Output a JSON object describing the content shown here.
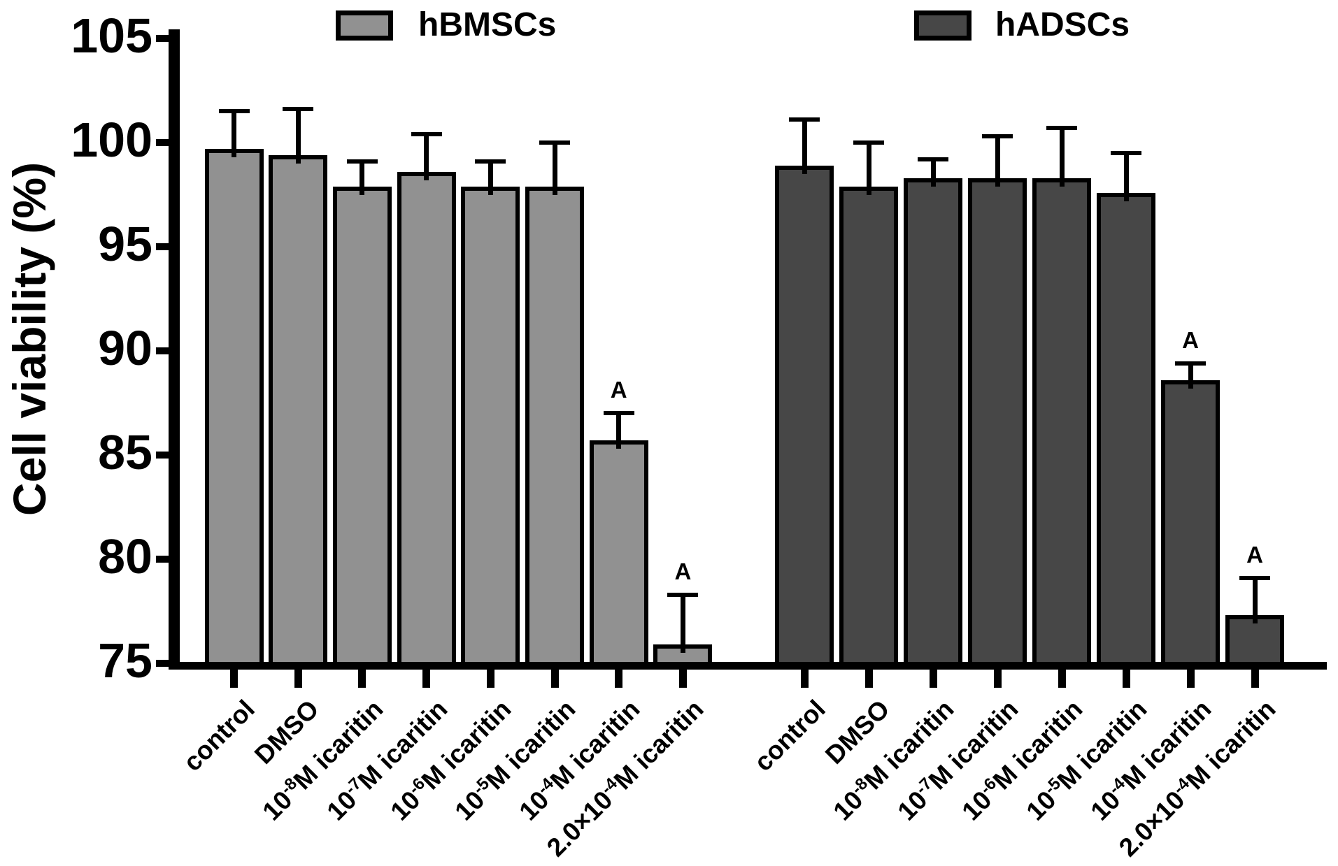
{
  "figure": {
    "background": "#ffffff",
    "axis_color": "#000000",
    "significance_marker": "A"
  },
  "chart_data": {
    "type": "bar",
    "title": "",
    "xlabel": "",
    "ylabel": "Cell viability (%)",
    "ylim": [
      75,
      105
    ],
    "yticks": [
      105,
      100,
      95,
      90,
      85,
      80,
      75
    ],
    "grid": false,
    "legend_position": "top",
    "error_bars": "plus_sd_cap",
    "categories": [
      {
        "pre": "control",
        "sup": "",
        "rest": ""
      },
      {
        "pre": "DMSO",
        "sup": "",
        "rest": ""
      },
      {
        "pre": "10",
        "sup": "-8",
        "rest": "M icaritin"
      },
      {
        "pre": "10",
        "sup": "-7",
        "rest": "M icaritin"
      },
      {
        "pre": "10",
        "sup": "-6",
        "rest": "M icaritin"
      },
      {
        "pre": "10",
        "sup": "-5",
        "rest": "M icaritin"
      },
      {
        "pre": "10",
        "sup": "-4",
        "rest": "M icaritin"
      },
      {
        "pre": "2.0×10",
        "sup": "-4",
        "rest": "M icaritin"
      }
    ],
    "series": [
      {
        "name": "hBMSCs",
        "color": "#919191",
        "values": [
          99.7,
          99.4,
          97.9,
          98.6,
          97.9,
          97.9,
          85.7,
          75.9
        ],
        "sd_plus": [
          1.8,
          2.2,
          1.2,
          1.8,
          1.2,
          2.1,
          1.3,
          2.4
        ],
        "sig": [
          "",
          "",
          "",
          "",
          "",
          "",
          "A",
          "A"
        ]
      },
      {
        "name": "hADSCs",
        "color": "#474747",
        "values": [
          98.9,
          97.9,
          98.3,
          98.3,
          98.3,
          97.6,
          88.6,
          77.3
        ],
        "sd_plus": [
          2.2,
          2.1,
          0.9,
          2.0,
          2.4,
          1.9,
          0.8,
          1.8
        ],
        "sig": [
          "",
          "",
          "",
          "",
          "",
          "",
          "A",
          "A"
        ]
      }
    ]
  }
}
